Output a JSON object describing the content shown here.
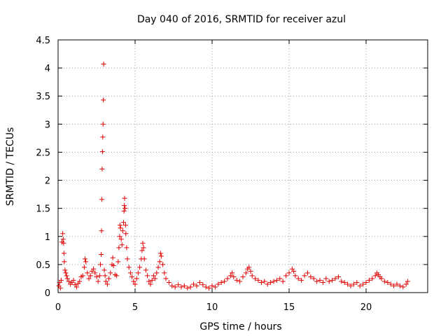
{
  "colors": {
    "series": "#e00000",
    "grid": "#9a9a9a",
    "axis": "#000000"
  },
  "chart_data": {
    "type": "scatter",
    "title": "Day 040 of 2016, SRMTID for receiver azul",
    "xlabel": "GPS time / hours",
    "ylabel": "SRMTID / TECUs",
    "xlim": [
      0,
      24
    ],
    "ylim": [
      0,
      4.5
    ],
    "x_ticks": [
      {
        "value": 0,
        "label": "0"
      },
      {
        "value": 5,
        "label": "5"
      },
      {
        "value": 10,
        "label": "10"
      },
      {
        "value": 15,
        "label": "15"
      },
      {
        "value": 20,
        "label": "20"
      }
    ],
    "y_ticks": [
      {
        "value": 0,
        "label": "0"
      },
      {
        "value": 0.5,
        "label": "0.5"
      },
      {
        "value": 1,
        "label": "1"
      },
      {
        "value": 1.5,
        "label": "1.5"
      },
      {
        "value": 2,
        "label": "2"
      },
      {
        "value": 2.5,
        "label": "2.5"
      },
      {
        "value": 3,
        "label": "3"
      },
      {
        "value": 3.5,
        "label": "3.5"
      },
      {
        "value": 4,
        "label": "4"
      },
      {
        "value": 4.5,
        "label": "4.5"
      }
    ],
    "grid": true,
    "legend": "none",
    "marker": "+",
    "series": [
      {
        "name": "SRMTID",
        "points": [
          [
            0.05,
            0.12
          ],
          [
            0.1,
            0.18
          ],
          [
            0.15,
            0.08
          ],
          [
            0.2,
            0.22
          ],
          [
            0.25,
            0.9
          ],
          [
            0.3,
            1.05
          ],
          [
            0.33,
            0.95
          ],
          [
            0.36,
            0.88
          ],
          [
            0.38,
            0.7
          ],
          [
            0.4,
            0.55
          ],
          [
            0.45,
            0.4
          ],
          [
            0.5,
            0.35
          ],
          [
            0.55,
            0.3
          ],
          [
            0.6,
            0.25
          ],
          [
            0.7,
            0.2
          ],
          [
            0.8,
            0.15
          ],
          [
            0.9,
            0.18
          ],
          [
            1.0,
            0.22
          ],
          [
            1.1,
            0.14
          ],
          [
            1.2,
            0.1
          ],
          [
            1.3,
            0.16
          ],
          [
            1.4,
            0.2
          ],
          [
            1.5,
            0.28
          ],
          [
            1.6,
            0.3
          ],
          [
            1.7,
            0.45
          ],
          [
            1.75,
            0.6
          ],
          [
            1.8,
            0.55
          ],
          [
            1.9,
            0.35
          ],
          [
            2.0,
            0.25
          ],
          [
            2.1,
            0.3
          ],
          [
            2.2,
            0.38
          ],
          [
            2.3,
            0.42
          ],
          [
            2.4,
            0.35
          ],
          [
            2.5,
            0.28
          ],
          [
            2.6,
            0.2
          ],
          [
            2.7,
            0.3
          ],
          [
            2.75,
            0.5
          ],
          [
            2.8,
            0.68
          ],
          [
            2.82,
            1.1
          ],
          [
            2.84,
            1.66
          ],
          [
            2.86,
            2.2
          ],
          [
            2.88,
            2.51
          ],
          [
            2.9,
            2.77
          ],
          [
            2.92,
            3.0
          ],
          [
            2.94,
            3.43
          ],
          [
            2.96,
            4.07
          ],
          [
            3.0,
            0.4
          ],
          [
            3.05,
            0.3
          ],
          [
            3.1,
            0.2
          ],
          [
            3.2,
            0.15
          ],
          [
            3.3,
            0.25
          ],
          [
            3.4,
            0.35
          ],
          [
            3.5,
            0.5
          ],
          [
            3.55,
            0.62
          ],
          [
            3.6,
            0.48
          ],
          [
            3.7,
            0.32
          ],
          [
            3.8,
            0.3
          ],
          [
            3.9,
            0.55
          ],
          [
            3.95,
            0.8
          ],
          [
            4.0,
            1.0
          ],
          [
            4.02,
            1.2
          ],
          [
            4.05,
            1.15
          ],
          [
            4.1,
            0.95
          ],
          [
            4.15,
            0.85
          ],
          [
            4.2,
            1.1
          ],
          [
            4.25,
            1.25
          ],
          [
            4.28,
            1.45
          ],
          [
            4.3,
            1.55
          ],
          [
            4.32,
            1.68
          ],
          [
            4.35,
            1.5
          ],
          [
            4.38,
            1.2
          ],
          [
            4.4,
            1.05
          ],
          [
            4.45,
            0.8
          ],
          [
            4.5,
            0.6
          ],
          [
            4.6,
            0.45
          ],
          [
            4.7,
            0.35
          ],
          [
            4.8,
            0.28
          ],
          [
            4.9,
            0.2
          ],
          [
            5.0,
            0.15
          ],
          [
            5.1,
            0.25
          ],
          [
            5.2,
            0.35
          ],
          [
            5.3,
            0.45
          ],
          [
            5.4,
            0.6
          ],
          [
            5.45,
            0.75
          ],
          [
            5.5,
            0.88
          ],
          [
            5.55,
            0.8
          ],
          [
            5.6,
            0.6
          ],
          [
            5.7,
            0.4
          ],
          [
            5.8,
            0.3
          ],
          [
            5.9,
            0.2
          ],
          [
            6.0,
            0.15
          ],
          [
            6.1,
            0.22
          ],
          [
            6.2,
            0.3
          ],
          [
            6.3,
            0.25
          ],
          [
            6.4,
            0.35
          ],
          [
            6.5,
            0.45
          ],
          [
            6.6,
            0.55
          ],
          [
            6.65,
            0.7
          ],
          [
            6.7,
            0.65
          ],
          [
            6.8,
            0.5
          ],
          [
            6.9,
            0.35
          ],
          [
            7.0,
            0.25
          ],
          [
            7.2,
            0.18
          ],
          [
            7.4,
            0.12
          ],
          [
            7.6,
            0.1
          ],
          [
            7.8,
            0.14
          ],
          [
            8.0,
            0.1
          ],
          [
            8.2,
            0.12
          ],
          [
            8.4,
            0.08
          ],
          [
            8.6,
            0.1
          ],
          [
            8.8,
            0.15
          ],
          [
            9.0,
            0.12
          ],
          [
            9.2,
            0.18
          ],
          [
            9.4,
            0.14
          ],
          [
            9.6,
            0.1
          ],
          [
            9.8,
            0.08
          ],
          [
            10.0,
            0.12
          ],
          [
            10.2,
            0.1
          ],
          [
            10.4,
            0.15
          ],
          [
            10.6,
            0.18
          ],
          [
            10.8,
            0.2
          ],
          [
            11.0,
            0.25
          ],
          [
            11.2,
            0.3
          ],
          [
            11.3,
            0.35
          ],
          [
            11.4,
            0.28
          ],
          [
            11.6,
            0.22
          ],
          [
            11.8,
            0.2
          ],
          [
            12.0,
            0.28
          ],
          [
            12.2,
            0.35
          ],
          [
            12.3,
            0.42
          ],
          [
            12.4,
            0.45
          ],
          [
            12.5,
            0.38
          ],
          [
            12.6,
            0.3
          ],
          [
            12.8,
            0.25
          ],
          [
            13.0,
            0.22
          ],
          [
            13.2,
            0.18
          ],
          [
            13.4,
            0.2
          ],
          [
            13.6,
            0.15
          ],
          [
            13.8,
            0.18
          ],
          [
            14.0,
            0.2
          ],
          [
            14.2,
            0.22
          ],
          [
            14.4,
            0.25
          ],
          [
            14.6,
            0.2
          ],
          [
            14.8,
            0.3
          ],
          [
            15.0,
            0.35
          ],
          [
            15.2,
            0.42
          ],
          [
            15.3,
            0.38
          ],
          [
            15.4,
            0.3
          ],
          [
            15.6,
            0.25
          ],
          [
            15.8,
            0.22
          ],
          [
            16.0,
            0.3
          ],
          [
            16.2,
            0.35
          ],
          [
            16.4,
            0.28
          ],
          [
            16.6,
            0.25
          ],
          [
            16.8,
            0.2
          ],
          [
            17.0,
            0.22
          ],
          [
            17.2,
            0.18
          ],
          [
            17.4,
            0.25
          ],
          [
            17.6,
            0.2
          ],
          [
            17.8,
            0.22
          ],
          [
            18.0,
            0.25
          ],
          [
            18.2,
            0.28
          ],
          [
            18.4,
            0.2
          ],
          [
            18.6,
            0.18
          ],
          [
            18.8,
            0.15
          ],
          [
            19.0,
            0.12
          ],
          [
            19.2,
            0.15
          ],
          [
            19.4,
            0.18
          ],
          [
            19.6,
            0.12
          ],
          [
            19.8,
            0.15
          ],
          [
            20.0,
            0.18
          ],
          [
            20.2,
            0.22
          ],
          [
            20.4,
            0.25
          ],
          [
            20.6,
            0.3
          ],
          [
            20.7,
            0.35
          ],
          [
            20.8,
            0.32
          ],
          [
            20.9,
            0.28
          ],
          [
            21.0,
            0.25
          ],
          [
            21.2,
            0.2
          ],
          [
            21.4,
            0.18
          ],
          [
            21.6,
            0.15
          ],
          [
            21.8,
            0.12
          ],
          [
            22.0,
            0.15
          ],
          [
            22.2,
            0.12
          ],
          [
            22.4,
            0.1
          ],
          [
            22.6,
            0.15
          ],
          [
            22.7,
            0.2
          ]
        ]
      }
    ]
  }
}
